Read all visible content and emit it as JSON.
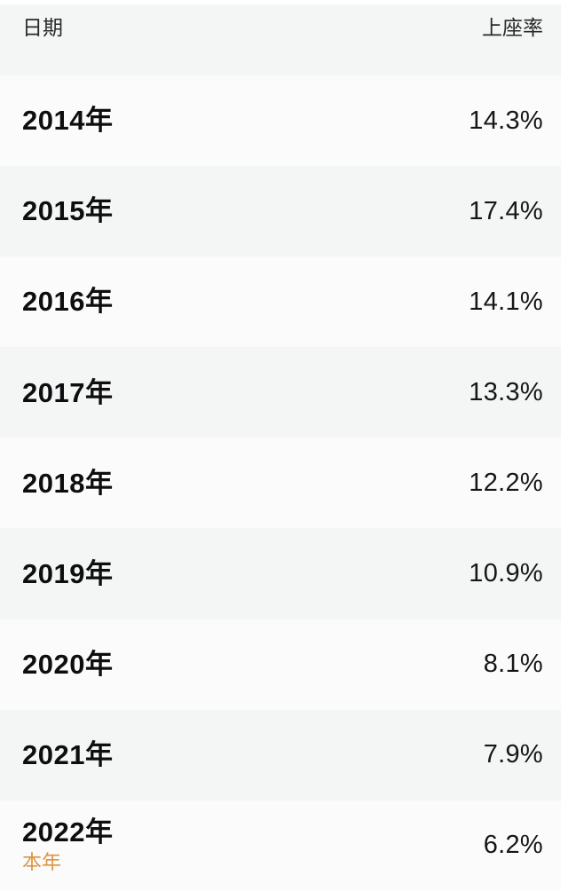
{
  "table": {
    "header": {
      "date_label": "日期",
      "rate_label": "上座率"
    },
    "rows": [
      {
        "year": "2014年",
        "rate": "14.3%"
      },
      {
        "year": "2015年",
        "rate": "17.4%"
      },
      {
        "year": "2016年",
        "rate": "14.1%"
      },
      {
        "year": "2017年",
        "rate": "13.3%"
      },
      {
        "year": "2018年",
        "rate": "12.2%"
      },
      {
        "year": "2019年",
        "rate": "10.9%"
      },
      {
        "year": "2020年",
        "rate": "8.1%"
      },
      {
        "year": "2021年",
        "rate": "7.9%"
      },
      {
        "year": "2022年",
        "sublabel": "本年",
        "rate": "6.2%"
      }
    ]
  },
  "colors": {
    "accent_orange": "#dd9540",
    "row_light": "#fbfbfb",
    "row_gray": "#f4f5f5",
    "header_bg": "#f4f5f5"
  }
}
